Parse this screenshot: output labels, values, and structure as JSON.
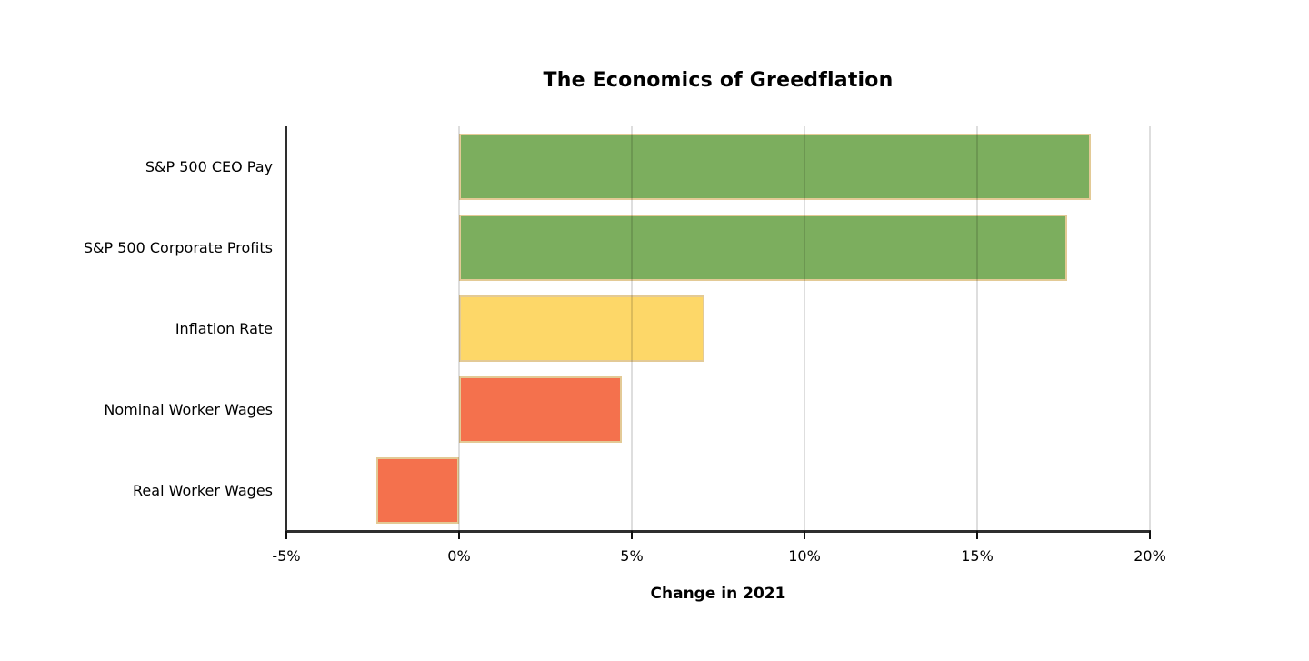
{
  "chart_data": {
    "type": "bar",
    "orientation": "horizontal",
    "title": "The Economics of Greedflation",
    "xlabel": "Change in 2021",
    "categories": [
      "S&P 500 CEO Pay",
      "S&P 500 Corporate Profits",
      "Inflation Rate",
      "Nominal Worker Wages",
      "Real Worker Wages"
    ],
    "values": [
      18.3,
      17.6,
      7.1,
      4.7,
      -2.4
    ],
    "unit": "%",
    "xlim": [
      -5,
      20
    ],
    "xticks": [
      -5,
      0,
      5,
      10,
      15,
      20
    ],
    "xtick_labels": [
      "-5%",
      "0%",
      "5%",
      "10%",
      "15%",
      "20%"
    ],
    "bar_colors": [
      "#7CAE5E",
      "#7CAE5E",
      "#FDD768",
      "#F4714D",
      "#F4714D"
    ],
    "bar_border_color": "#E3CA96",
    "gridline_color": "#DCDCDC",
    "axis_color": "#2E2E2E",
    "background_color": "#FFFFFF",
    "grid": true,
    "legend": false
  }
}
